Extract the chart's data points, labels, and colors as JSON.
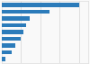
{
  "values": [
    100,
    62,
    36,
    32,
    28,
    24,
    18,
    13,
    5
  ],
  "bar_color": "#2b7bba",
  "background_color": "#f9f9f9",
  "plot_bg": "#f9f9f9",
  "border_color": "#dddddd",
  "xlim": [
    0,
    112
  ],
  "figsize": [
    1.0,
    0.71
  ],
  "dpi": 100
}
